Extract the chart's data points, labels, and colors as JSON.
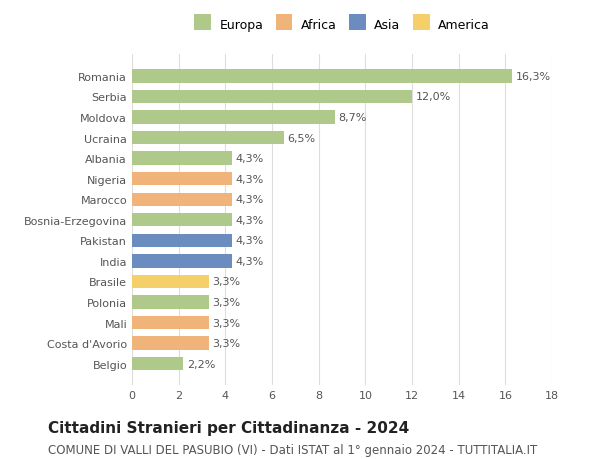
{
  "categories": [
    "Belgio",
    "Costa d'Avorio",
    "Mali",
    "Polonia",
    "Brasile",
    "India",
    "Pakistan",
    "Bosnia-Erzegovina",
    "Marocco",
    "Nigeria",
    "Albania",
    "Ucraina",
    "Moldova",
    "Serbia",
    "Romania"
  ],
  "values": [
    2.2,
    3.3,
    3.3,
    3.3,
    3.3,
    4.3,
    4.3,
    4.3,
    4.3,
    4.3,
    4.3,
    6.5,
    8.7,
    12.0,
    16.3
  ],
  "labels": [
    "2,2%",
    "3,3%",
    "3,3%",
    "3,3%",
    "3,3%",
    "4,3%",
    "4,3%",
    "4,3%",
    "4,3%",
    "4,3%",
    "4,3%",
    "6,5%",
    "8,7%",
    "12,0%",
    "16,3%"
  ],
  "continents": [
    "Europa",
    "Africa",
    "Africa",
    "Europa",
    "America",
    "Asia",
    "Asia",
    "Europa",
    "Africa",
    "Africa",
    "Europa",
    "Europa",
    "Europa",
    "Europa",
    "Europa"
  ],
  "colors": {
    "Europa": "#aec98a",
    "Africa": "#f0b47a",
    "Asia": "#6b8cbf",
    "America": "#f5d06a"
  },
  "legend_order": [
    "Europa",
    "Africa",
    "Asia",
    "America"
  ],
  "title": "Cittadini Stranieri per Cittadinanza - 2024",
  "subtitle": "COMUNE DI VALLI DEL PASUBIO (VI) - Dati ISTAT al 1° gennaio 2024 - TUTTITALIA.IT",
  "xlim": [
    0,
    18
  ],
  "xticks": [
    0,
    2,
    4,
    6,
    8,
    10,
    12,
    14,
    16,
    18
  ],
  "background_color": "#ffffff",
  "grid_color": "#dddddd",
  "bar_height": 0.65,
  "title_fontsize": 11,
  "subtitle_fontsize": 8.5,
  "label_fontsize": 8,
  "tick_fontsize": 8,
  "legend_fontsize": 9
}
